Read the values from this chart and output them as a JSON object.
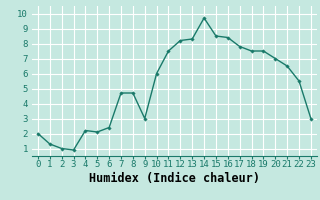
{
  "x": [
    0,
    1,
    2,
    3,
    4,
    5,
    6,
    7,
    8,
    9,
    10,
    11,
    12,
    13,
    14,
    15,
    16,
    17,
    18,
    19,
    20,
    21,
    22,
    23
  ],
  "y": [
    2.0,
    1.3,
    1.0,
    0.9,
    2.2,
    2.1,
    2.4,
    4.7,
    4.7,
    3.0,
    6.0,
    7.5,
    8.2,
    8.3,
    9.7,
    8.5,
    8.4,
    7.8,
    7.5,
    7.5,
    7.0,
    6.5,
    5.5,
    3.0
  ],
  "xlabel": "Humidex (Indice chaleur)",
  "xlim": [
    -0.5,
    23.5
  ],
  "ylim": [
    0.5,
    10.5
  ],
  "yticks": [
    1,
    2,
    3,
    4,
    5,
    6,
    7,
    8,
    9,
    10
  ],
  "xticks": [
    0,
    1,
    2,
    3,
    4,
    5,
    6,
    7,
    8,
    9,
    10,
    11,
    12,
    13,
    14,
    15,
    16,
    17,
    18,
    19,
    20,
    21,
    22,
    23
  ],
  "line_color": "#1a7a6a",
  "marker": "D",
  "marker_size": 1.8,
  "line_width": 1.0,
  "bg_color": "#c5e8e0",
  "grid_color": "#ffffff",
  "tick_label_fontsize": 6.5,
  "xlabel_fontsize": 8.5
}
